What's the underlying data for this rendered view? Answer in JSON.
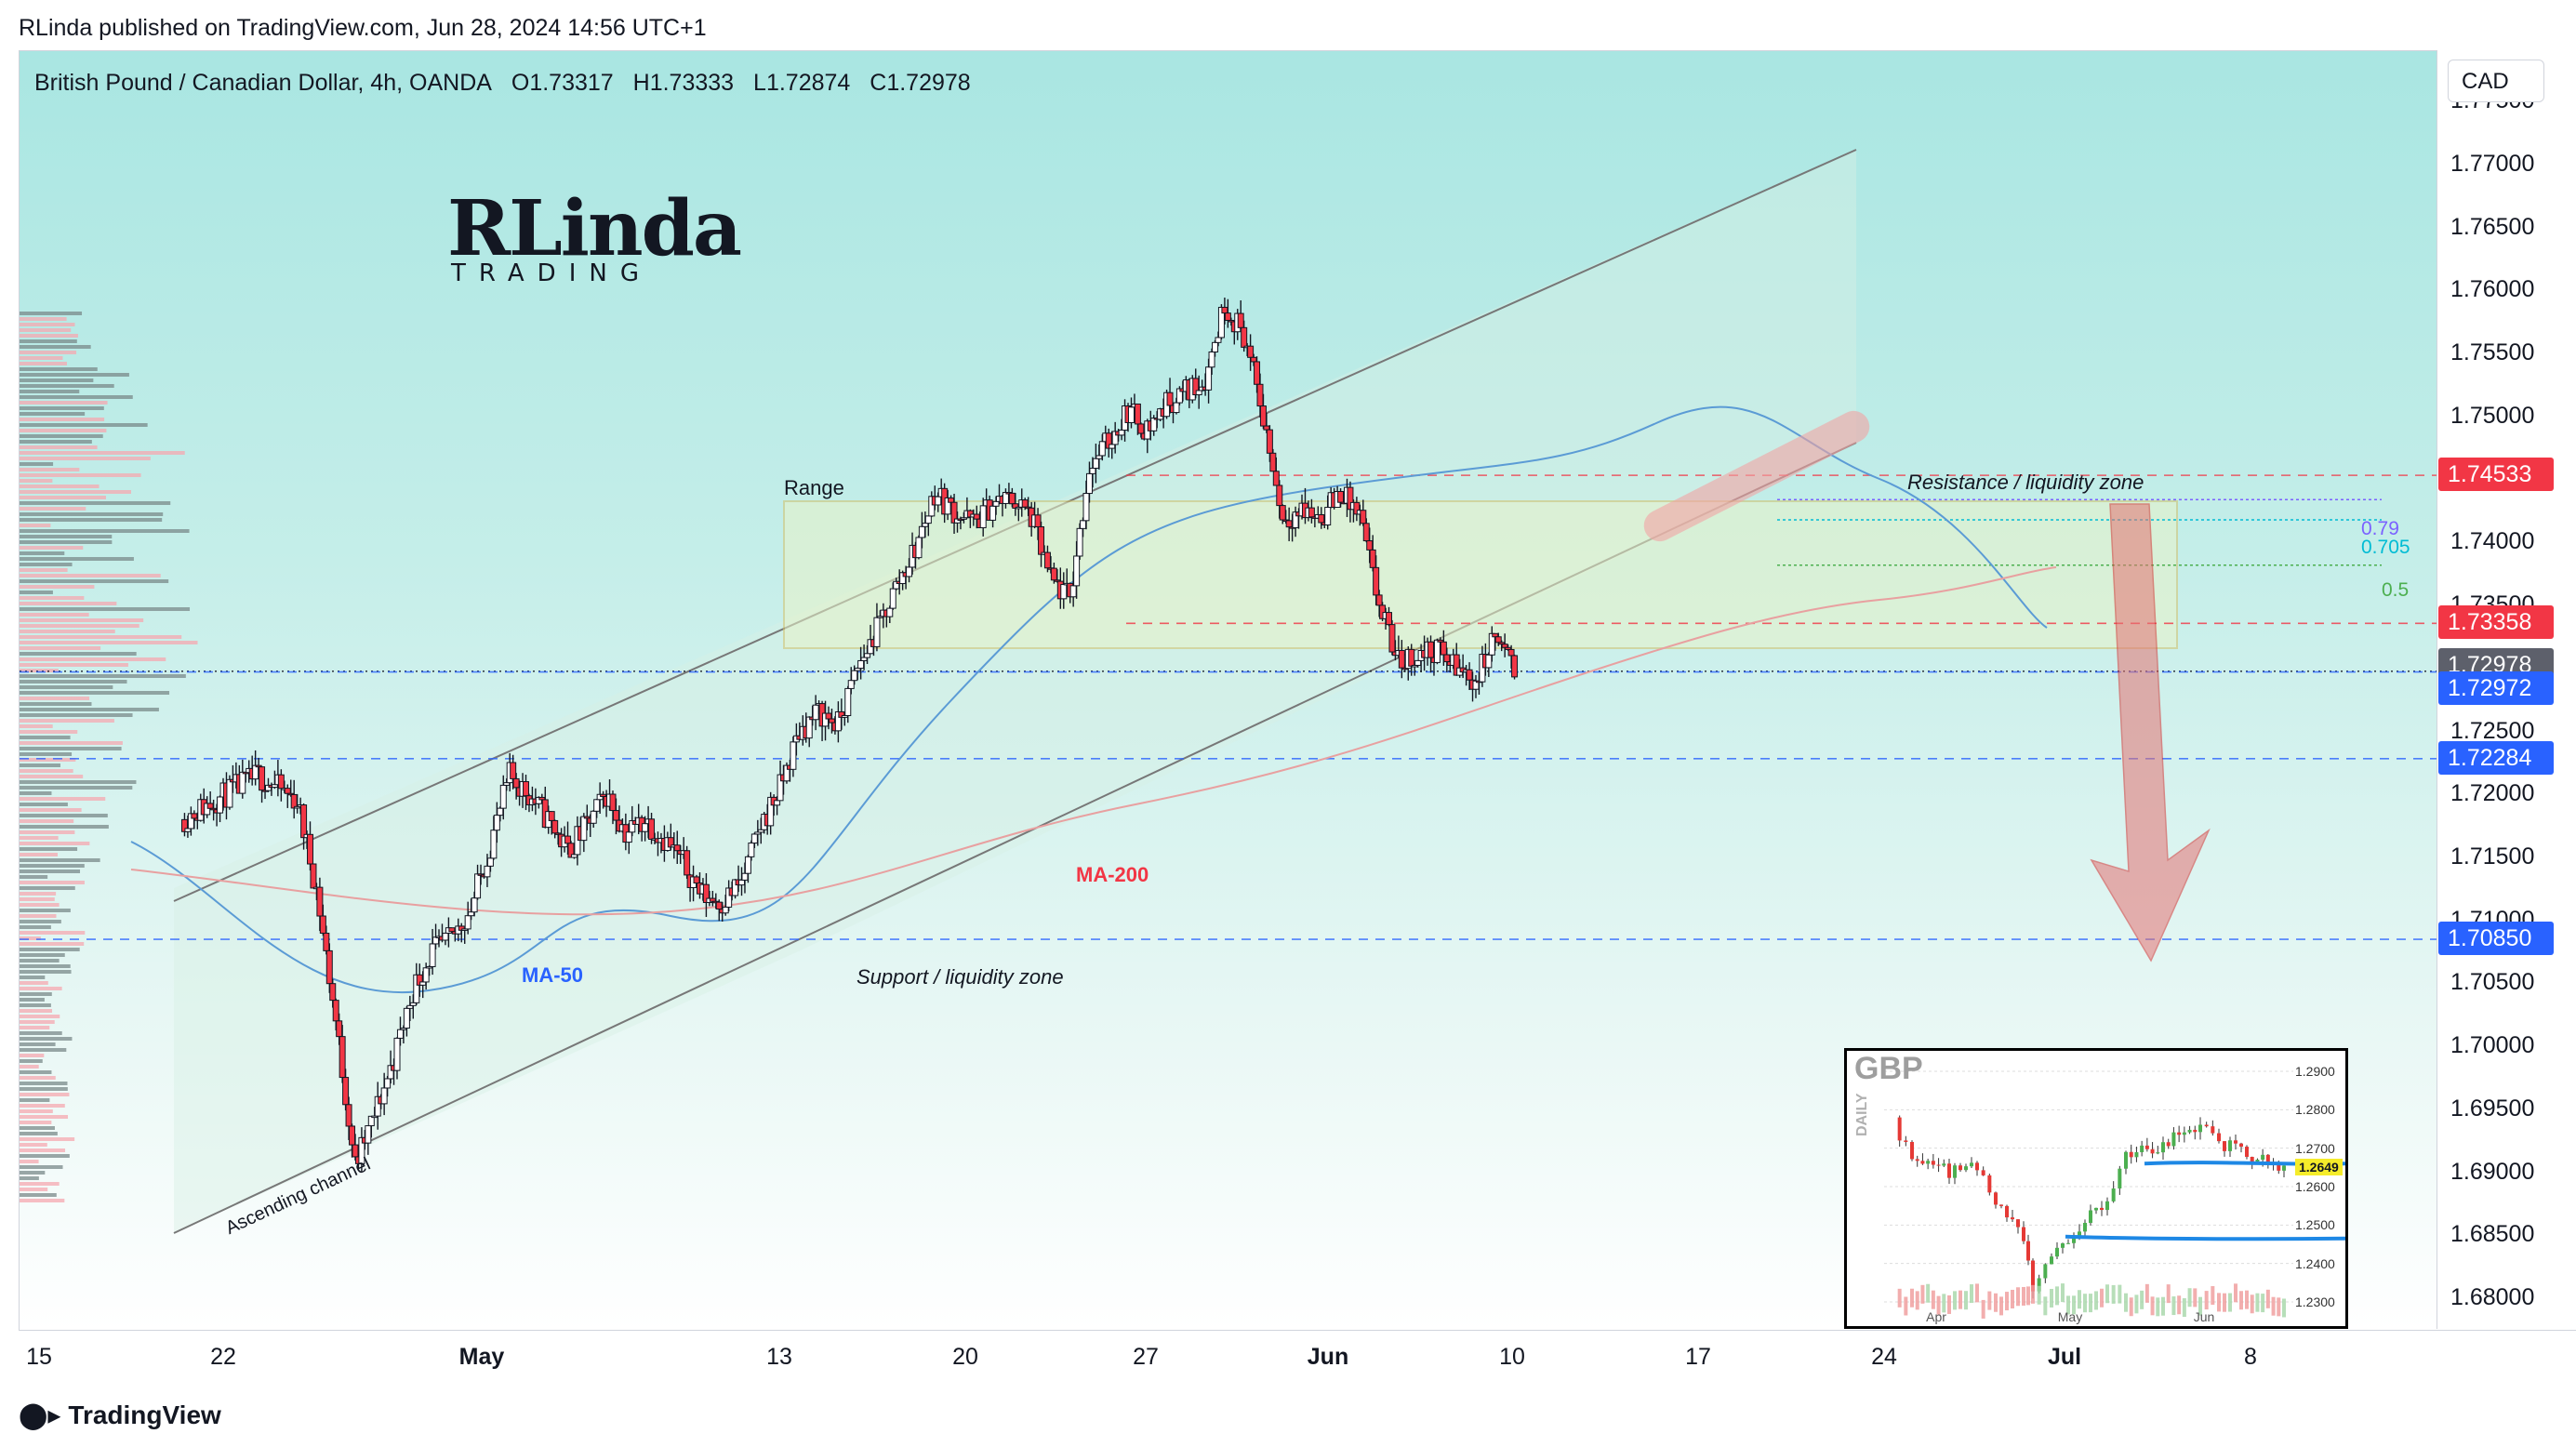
{
  "topbar": {
    "publisher": "RLinda published on TradingView.com, Jun 28, 2024 14:56 UTC+1"
  },
  "symbol": {
    "name": "British Pound / Canadian Dollar, 4h, OANDA",
    "open": "O1.73317",
    "high": "H1.73333",
    "low": "L1.72874",
    "close": "C1.72978"
  },
  "logo": {
    "text_big": "RLinda",
    "text_small": "TRADING"
  },
  "currency_button": "CAD",
  "footer": {
    "brand": "TradingView"
  },
  "annotations": {
    "range": "Range",
    "resistance": "Resistance / liquidity zone",
    "support": "Support / liquidity zone",
    "ma50": "MA-50",
    "ma200": "MA-200",
    "channel": "Ascending channel",
    "fib_079": "0.79",
    "fib_0705": "0.705",
    "fib_05": "0.5"
  },
  "colors": {
    "up_candle": "#22ab94",
    "down_candle": "#f23645",
    "resistance_tag": "#f23645",
    "blue_tag": "#2962ff",
    "grey_tag": "#5d606b",
    "range_box": "#d4c26a",
    "arrow": "#e57373",
    "ma50": "#5b9bd5",
    "ma200": "#e8a0a0"
  },
  "chart_data": {
    "type": "candlestick",
    "title": "British Pound / Canadian Dollar, 4h, OANDA",
    "ylim": [
      1.6775,
      1.779
    ],
    "y_ticks": [
      "1.77500",
      "1.77000",
      "1.76500",
      "1.76000",
      "1.75500",
      "1.75000",
      "1.74500",
      "1.74000",
      "1.73500",
      "1.73000",
      "1.72500",
      "1.72000",
      "1.71500",
      "1.71000",
      "1.70500",
      "1.70000",
      "1.69500",
      "1.69000",
      "1.68500",
      "1.68000"
    ],
    "x_ticks": [
      {
        "label": "15",
        "bold": false
      },
      {
        "label": "22",
        "bold": false
      },
      {
        "label": "May",
        "bold": true
      },
      {
        "label": "13",
        "bold": false
      },
      {
        "label": "20",
        "bold": false
      },
      {
        "label": "27",
        "bold": false
      },
      {
        "label": "Jun",
        "bold": true
      },
      {
        "label": "10",
        "bold": false
      },
      {
        "label": "17",
        "bold": false
      },
      {
        "label": "24",
        "bold": false
      },
      {
        "label": "Jul",
        "bold": true
      },
      {
        "label": "8",
        "bold": false
      }
    ],
    "price_levels": [
      {
        "label": "1.74533",
        "value": 1.74533,
        "kind": "resistance"
      },
      {
        "label": "1.73358",
        "value": 1.73358,
        "kind": "resistance"
      },
      {
        "label": "1.72978",
        "value": 1.72978,
        "kind": "last"
      },
      {
        "label": "1.72972",
        "value": 1.72972,
        "kind": "blue"
      },
      {
        "label": "1.72284",
        "value": 1.72284,
        "kind": "blue"
      },
      {
        "label": "1.70850",
        "value": 1.7085,
        "kind": "blue"
      }
    ],
    "path_points": [
      {
        "day": 0,
        "price": 1.718
      },
      {
        "day": 4,
        "price": 1.7215
      },
      {
        "day": 6,
        "price": 1.7195
      },
      {
        "day": 7,
        "price": 1.7125
      },
      {
        "day": 8,
        "price": 1.702
      },
      {
        "day": 9,
        "price": 1.6905
      },
      {
        "day": 10,
        "price": 1.6945
      },
      {
        "day": 11,
        "price": 1.699
      },
      {
        "day": 12,
        "price": 1.7045
      },
      {
        "day": 13,
        "price": 1.7075
      },
      {
        "day": 14,
        "price": 1.7085
      },
      {
        "day": 15,
        "price": 1.711
      },
      {
        "day": 16,
        "price": 1.716
      },
      {
        "day": 17,
        "price": 1.7215
      },
      {
        "day": 18,
        "price": 1.72
      },
      {
        "day": 19,
        "price": 1.718
      },
      {
        "day": 20,
        "price": 1.7155
      },
      {
        "day": 21,
        "price": 1.7175
      },
      {
        "day": 22,
        "price": 1.72
      },
      {
        "day": 23,
        "price": 1.717
      },
      {
        "day": 24,
        "price": 1.718
      },
      {
        "day": 25,
        "price": 1.7165
      },
      {
        "day": 26,
        "price": 1.7145
      },
      {
        "day": 27,
        "price": 1.712
      },
      {
        "day": 28,
        "price": 1.7115
      },
      {
        "day": 29,
        "price": 1.713
      },
      {
        "day": 30,
        "price": 1.7175
      },
      {
        "day": 31,
        "price": 1.7205
      },
      {
        "day": 32,
        "price": 1.725
      },
      {
        "day": 33,
        "price": 1.7265
      },
      {
        "day": 34,
        "price": 1.7255
      },
      {
        "day": 35,
        "price": 1.73
      },
      {
        "day": 36,
        "price": 1.733
      },
      {
        "day": 37,
        "price": 1.7365
      },
      {
        "day": 38,
        "price": 1.7395
      },
      {
        "day": 39,
        "price": 1.744
      },
      {
        "day": 40,
        "price": 1.7425
      },
      {
        "day": 41,
        "price": 1.7415
      },
      {
        "day": 42,
        "price": 1.743
      },
      {
        "day": 43,
        "price": 1.7435
      },
      {
        "day": 44,
        "price": 1.742
      },
      {
        "day": 45,
        "price": 1.737
      },
      {
        "day": 46,
        "price": 1.7355
      },
      {
        "day": 47,
        "price": 1.746
      },
      {
        "day": 48,
        "price": 1.748
      },
      {
        "day": 49,
        "price": 1.7505
      },
      {
        "day": 50,
        "price": 1.749
      },
      {
        "day": 51,
        "price": 1.751
      },
      {
        "day": 52,
        "price": 1.752
      },
      {
        "day": 53,
        "price": 1.753
      },
      {
        "day": 54,
        "price": 1.759
      },
      {
        "day": 55,
        "price": 1.7565
      },
      {
        "day": 56,
        "price": 1.75
      },
      {
        "day": 57,
        "price": 1.742
      },
      {
        "day": 58,
        "price": 1.7425
      },
      {
        "day": 59,
        "price": 1.742
      },
      {
        "day": 60,
        "price": 1.744
      },
      {
        "day": 61,
        "price": 1.742
      },
      {
        "day": 62,
        "price": 1.735
      },
      {
        "day": 63,
        "price": 1.7305
      },
      {
        "day": 64,
        "price": 1.731
      },
      {
        "day": 65,
        "price": 1.7315
      },
      {
        "day": 66,
        "price": 1.73
      },
      {
        "day": 67,
        "price": 1.729
      },
      {
        "day": 68,
        "price": 1.7325
      },
      {
        "day": 69,
        "price": 1.7298
      }
    ],
    "inset": {
      "title": "GBP",
      "timeframe": "DAILY",
      "last_value": "1.2649",
      "y_ticks": [
        "1.2900",
        "1.2800",
        "1.2700",
        "1.2600",
        "1.2500",
        "1.2400",
        "1.2300"
      ],
      "x_ticks": [
        "Apr",
        "May",
        "Jun"
      ]
    }
  }
}
